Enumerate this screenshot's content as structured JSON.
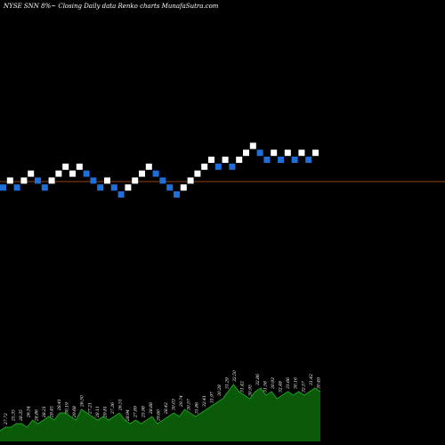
{
  "chart_data": {
    "type": "renko",
    "title": "NYSE SNN  8%~   Closing Daily data  Renko  charts MunafaSutra.com",
    "colors": {
      "background": "#000000",
      "up_brick": "#ffffff",
      "down_brick": "#1e6fd9",
      "reference_line": "#8b4513",
      "volume_fill": "#0a5a0a",
      "volume_line": "#1fa31f"
    },
    "bricks": [
      {
        "level": 1,
        "dir": "down"
      },
      {
        "level": 2,
        "dir": "up"
      },
      {
        "level": 1,
        "dir": "down"
      },
      {
        "level": 2,
        "dir": "up"
      },
      {
        "level": 3,
        "dir": "up"
      },
      {
        "level": 2,
        "dir": "down"
      },
      {
        "level": 1,
        "dir": "down"
      },
      {
        "level": 2,
        "dir": "up"
      },
      {
        "level": 3,
        "dir": "up"
      },
      {
        "level": 4,
        "dir": "up"
      },
      {
        "level": 3,
        "dir": "up"
      },
      {
        "level": 4,
        "dir": "up"
      },
      {
        "level": 3,
        "dir": "down"
      },
      {
        "level": 2,
        "dir": "down"
      },
      {
        "level": 1,
        "dir": "down"
      },
      {
        "level": 2,
        "dir": "up"
      },
      {
        "level": 1,
        "dir": "down"
      },
      {
        "level": 0,
        "dir": "down"
      },
      {
        "level": 1,
        "dir": "up"
      },
      {
        "level": 2,
        "dir": "up"
      },
      {
        "level": 3,
        "dir": "up"
      },
      {
        "level": 4,
        "dir": "up"
      },
      {
        "level": 3,
        "dir": "down"
      },
      {
        "level": 2,
        "dir": "down"
      },
      {
        "level": 1,
        "dir": "down"
      },
      {
        "level": 0,
        "dir": "down"
      },
      {
        "level": 1,
        "dir": "up"
      },
      {
        "level": 2,
        "dir": "up"
      },
      {
        "level": 3,
        "dir": "up"
      },
      {
        "level": 4,
        "dir": "up"
      },
      {
        "level": 5,
        "dir": "up"
      },
      {
        "level": 4,
        "dir": "down"
      },
      {
        "level": 5,
        "dir": "up"
      },
      {
        "level": 4,
        "dir": "down"
      },
      {
        "level": 5,
        "dir": "up"
      },
      {
        "level": 6,
        "dir": "up"
      },
      {
        "level": 7,
        "dir": "up"
      },
      {
        "level": 6,
        "dir": "down"
      },
      {
        "level": 5,
        "dir": "down"
      },
      {
        "level": 6,
        "dir": "up"
      },
      {
        "level": 5,
        "dir": "down"
      },
      {
        "level": 6,
        "dir": "up"
      },
      {
        "level": 5,
        "dir": "down"
      },
      {
        "level": 6,
        "dir": "up"
      },
      {
        "level": 5,
        "dir": "down"
      },
      {
        "level": 6,
        "dir": "up"
      }
    ],
    "volume": [
      3,
      4,
      4,
      5,
      5,
      4,
      6,
      5,
      6,
      7,
      6,
      8,
      8,
      7,
      6,
      9,
      8,
      7,
      6,
      7,
      6,
      7,
      8,
      6,
      5,
      6,
      5,
      6,
      7,
      5,
      6,
      7,
      8,
      7,
      9,
      8,
      7,
      8,
      9,
      10,
      11,
      12,
      14,
      16,
      14,
      13,
      12,
      14,
      15,
      13,
      14,
      12,
      13,
      14,
      13,
      14,
      13,
      14,
      15,
      14
    ],
    "volume_labels": [
      "27.72",
      "25.35",
      "28.35",
      "26.54",
      "28.86",
      "28.21",
      "29.45",
      "28.41",
      "30.19",
      "29.68",
      "26.50",
      "27.21",
      "28.11",
      "29.81",
      "27.36",
      "26.51",
      "28.94",
      "27.69",
      "25.98",
      "28.88",
      "29.60",
      "28.42",
      "30.03",
      "29.74",
      "30.57",
      "31.86",
      "32.41",
      "31.97",
      "30.28",
      "31.29",
      "32.50",
      "31.42",
      "30.95",
      "32.86",
      "31.58",
      "30.93",
      "32.48",
      "31.66",
      "30.16",
      "32.57",
      "31.42",
      "30.49"
    ]
  }
}
